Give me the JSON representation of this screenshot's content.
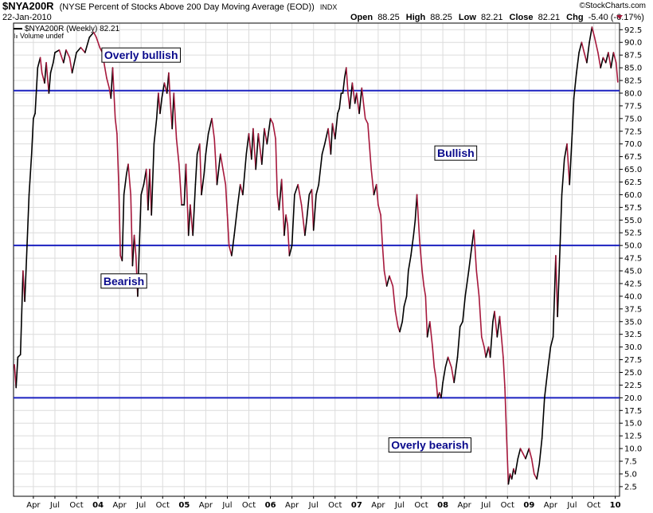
{
  "header": {
    "symbol": "$NYA200R",
    "description": "(NYSE Percent of Stocks Above 200 Day Moving Average (EOD))",
    "exchange": "INDX",
    "date": "22-Jan-2010",
    "open_label": "Open",
    "open": "88.25",
    "high_label": "High",
    "high": "88.25",
    "low_label": "Low",
    "low": "82.21",
    "close_label": "Close",
    "close": "82.21",
    "chg_label": "Chg",
    "chg": "-5.40 (-6.17%)",
    "watermark": "©StockCharts.com"
  },
  "legend": {
    "series": "$NYA200R (Weekly) 82.21",
    "volume": "Volume undef"
  },
  "annotations": [
    {
      "text": "Overly bullish",
      "x": 2004.5,
      "y": 87.5
    },
    {
      "text": "Bullish",
      "x": 2008.15,
      "y": 68.2
    },
    {
      "text": "Bearish",
      "x": 2004.3,
      "y": 43.0
    },
    {
      "text": "Overly bearish",
      "x": 2007.85,
      "y": 10.7
    }
  ],
  "colors": {
    "up": "#000000",
    "down": "#a6183c",
    "hline": "#1c22c0",
    "grid": "#dcdcdc",
    "annotation_text": "#0a0a8c",
    "chg_arrow": "#a6183c"
  },
  "chart_data": {
    "type": "line",
    "title": "$NYA200R (NYSE Percent of Stocks Above 200 Day Moving Average (EOD))",
    "xlim": [
      2003.02,
      2010.05
    ],
    "ylim": [
      0.6,
      93.8
    ],
    "y_ticks": [
      "2.5",
      "5.0",
      "7.5",
      "10.0",
      "12.5",
      "15.0",
      "17.5",
      "20.0",
      "22.5",
      "25.0",
      "27.5",
      "30.0",
      "32.5",
      "35.0",
      "37.5",
      "40.0",
      "42.5",
      "45.0",
      "47.5",
      "50.0",
      "52.5",
      "55.0",
      "57.5",
      "60.0",
      "62.5",
      "65.0",
      "67.5",
      "70.0",
      "72.5",
      "75.0",
      "77.5",
      "80.0",
      "82.5",
      "85.0",
      "87.5",
      "90.0",
      "92.5"
    ],
    "x_ticks": [
      {
        "label": "Apr",
        "x": 2003.25
      },
      {
        "label": "Jul",
        "x": 2003.5
      },
      {
        "label": "Oct",
        "x": 2003.75
      },
      {
        "label": "04",
        "x": 2004.0
      },
      {
        "label": "Apr",
        "x": 2004.25
      },
      {
        "label": "Jul",
        "x": 2004.5
      },
      {
        "label": "Oct",
        "x": 2004.75
      },
      {
        "label": "05",
        "x": 2005.0
      },
      {
        "label": "Apr",
        "x": 2005.25
      },
      {
        "label": "Jul",
        "x": 2005.5
      },
      {
        "label": "Oct",
        "x": 2005.75
      },
      {
        "label": "06",
        "x": 2006.0
      },
      {
        "label": "Apr",
        "x": 2006.25
      },
      {
        "label": "Jul",
        "x": 2006.5
      },
      {
        "label": "Oct",
        "x": 2006.75
      },
      {
        "label": "07",
        "x": 2007.0
      },
      {
        "label": "Apr",
        "x": 2007.25
      },
      {
        "label": "Jul",
        "x": 2007.5
      },
      {
        "label": "Oct",
        "x": 2007.75
      },
      {
        "label": "08",
        "x": 2008.0
      },
      {
        "label": "Apr",
        "x": 2008.25
      },
      {
        "label": "Jul",
        "x": 2008.5
      },
      {
        "label": "Oct",
        "x": 2008.75
      },
      {
        "label": "09",
        "x": 2009.0
      },
      {
        "label": "Apr",
        "x": 2009.25
      },
      {
        "label": "Jul",
        "x": 2009.5
      },
      {
        "label": "Oct",
        "x": 2009.75
      },
      {
        "label": "10",
        "x": 2010.0
      }
    ],
    "hlines": [
      80.5,
      50.0,
      20.0
    ],
    "grid": true,
    "series": [
      {
        "points": [
          [
            2003.03,
            26.5
          ],
          [
            2003.05,
            22
          ],
          [
            2003.07,
            28
          ],
          [
            2003.1,
            28.5
          ],
          [
            2003.13,
            45
          ],
          [
            2003.15,
            39
          ],
          [
            2003.17,
            47
          ],
          [
            2003.2,
            60
          ],
          [
            2003.23,
            68
          ],
          [
            2003.25,
            75
          ],
          [
            2003.27,
            76
          ],
          [
            2003.3,
            85
          ],
          [
            2003.33,
            87
          ],
          [
            2003.35,
            84
          ],
          [
            2003.38,
            82
          ],
          [
            2003.4,
            86
          ],
          [
            2003.43,
            80
          ],
          [
            2003.45,
            84
          ],
          [
            2003.48,
            86
          ],
          [
            2003.5,
            88
          ],
          [
            2003.55,
            88.5
          ],
          [
            2003.6,
            86
          ],
          [
            2003.63,
            88.5
          ],
          [
            2003.67,
            87
          ],
          [
            2003.7,
            84
          ],
          [
            2003.75,
            88
          ],
          [
            2003.8,
            89
          ],
          [
            2003.85,
            88
          ],
          [
            2003.9,
            91
          ],
          [
            2003.95,
            92
          ],
          [
            2003.98,
            91
          ],
          [
            2004.02,
            89
          ],
          [
            2004.05,
            88
          ],
          [
            2004.08,
            85
          ],
          [
            2004.1,
            83
          ],
          [
            2004.13,
            81
          ],
          [
            2004.15,
            79
          ],
          [
            2004.17,
            85
          ],
          [
            2004.2,
            75
          ],
          [
            2004.22,
            72
          ],
          [
            2004.24,
            62
          ],
          [
            2004.26,
            48
          ],
          [
            2004.28,
            47
          ],
          [
            2004.3,
            60
          ],
          [
            2004.33,
            64
          ],
          [
            2004.35,
            66
          ],
          [
            2004.38,
            60
          ],
          [
            2004.4,
            46
          ],
          [
            2004.42,
            52
          ],
          [
            2004.44,
            48
          ],
          [
            2004.46,
            40
          ],
          [
            2004.48,
            50
          ],
          [
            2004.5,
            60
          ],
          [
            2004.53,
            62
          ],
          [
            2004.56,
            65
          ],
          [
            2004.58,
            57
          ],
          [
            2004.6,
            65
          ],
          [
            2004.62,
            56
          ],
          [
            2004.65,
            70
          ],
          [
            2004.68,
            75
          ],
          [
            2004.7,
            80
          ],
          [
            2004.72,
            76
          ],
          [
            2004.74,
            79
          ],
          [
            2004.77,
            82
          ],
          [
            2004.8,
            80
          ],
          [
            2004.82,
            84
          ],
          [
            2004.84,
            78
          ],
          [
            2004.86,
            73
          ],
          [
            2004.88,
            80
          ],
          [
            2004.91,
            71
          ],
          [
            2004.94,
            66
          ],
          [
            2004.97,
            58
          ],
          [
            2005.0,
            58
          ],
          [
            2005.02,
            66
          ],
          [
            2005.05,
            52
          ],
          [
            2005.07,
            58
          ],
          [
            2005.1,
            52
          ],
          [
            2005.13,
            62
          ],
          [
            2005.15,
            68
          ],
          [
            2005.18,
            70
          ],
          [
            2005.2,
            60
          ],
          [
            2005.23,
            64
          ],
          [
            2005.25,
            68
          ],
          [
            2005.28,
            72
          ],
          [
            2005.32,
            75
          ],
          [
            2005.35,
            71
          ],
          [
            2005.38,
            62
          ],
          [
            2005.42,
            68
          ],
          [
            2005.45,
            65
          ],
          [
            2005.48,
            62
          ],
          [
            2005.5,
            56
          ],
          [
            2005.52,
            50
          ],
          [
            2005.55,
            48
          ],
          [
            2005.58,
            52
          ],
          [
            2005.62,
            58
          ],
          [
            2005.65,
            62
          ],
          [
            2005.68,
            60
          ],
          [
            2005.72,
            68
          ],
          [
            2005.75,
            72
          ],
          [
            2005.78,
            67
          ],
          [
            2005.8,
            73
          ],
          [
            2005.83,
            65
          ],
          [
            2005.86,
            72
          ],
          [
            2005.9,
            66
          ],
          [
            2005.93,
            73
          ],
          [
            2005.96,
            70
          ],
          [
            2006.0,
            75
          ],
          [
            2006.03,
            74
          ],
          [
            2006.06,
            71
          ],
          [
            2006.08,
            60
          ],
          [
            2006.1,
            57
          ],
          [
            2006.13,
            63
          ],
          [
            2006.16,
            52
          ],
          [
            2006.18,
            56
          ],
          [
            2006.2,
            54
          ],
          [
            2006.22,
            48
          ],
          [
            2006.25,
            50
          ],
          [
            2006.28,
            60
          ],
          [
            2006.32,
            62
          ],
          [
            2006.36,
            58
          ],
          [
            2006.4,
            52
          ],
          [
            2006.42,
            55
          ],
          [
            2006.45,
            60
          ],
          [
            2006.48,
            61
          ],
          [
            2006.5,
            53
          ],
          [
            2006.53,
            60
          ],
          [
            2006.56,
            62
          ],
          [
            2006.6,
            68
          ],
          [
            2006.63,
            70
          ],
          [
            2006.67,
            73
          ],
          [
            2006.7,
            68
          ],
          [
            2006.72,
            74
          ],
          [
            2006.75,
            71
          ],
          [
            2006.78,
            76
          ],
          [
            2006.8,
            77
          ],
          [
            2006.82,
            80
          ],
          [
            2006.84,
            80
          ],
          [
            2006.86,
            83
          ],
          [
            2006.88,
            85
          ],
          [
            2006.9,
            80
          ],
          [
            2006.92,
            77
          ],
          [
            2006.95,
            82
          ],
          [
            2006.98,
            78
          ],
          [
            2007.0,
            80
          ],
          [
            2007.03,
            76
          ],
          [
            2007.06,
            81
          ],
          [
            2007.1,
            75
          ],
          [
            2007.13,
            74
          ],
          [
            2007.17,
            65
          ],
          [
            2007.2,
            60
          ],
          [
            2007.23,
            62
          ],
          [
            2007.25,
            58
          ],
          [
            2007.28,
            56
          ],
          [
            2007.3,
            50
          ],
          [
            2007.32,
            45
          ],
          [
            2007.35,
            42
          ],
          [
            2007.38,
            44
          ],
          [
            2007.42,
            42
          ],
          [
            2007.45,
            37
          ],
          [
            2007.48,
            34
          ],
          [
            2007.5,
            33
          ],
          [
            2007.53,
            35
          ],
          [
            2007.55,
            38
          ],
          [
            2007.58,
            40
          ],
          [
            2007.6,
            45
          ],
          [
            2007.63,
            48
          ],
          [
            2007.66,
            52
          ],
          [
            2007.68,
            55
          ],
          [
            2007.7,
            60
          ],
          [
            2007.73,
            51
          ],
          [
            2007.76,
            45
          ],
          [
            2007.78,
            42
          ],
          [
            2007.8,
            40
          ],
          [
            2007.82,
            32
          ],
          [
            2007.85,
            35
          ],
          [
            2007.88,
            30
          ],
          [
            2007.9,
            26
          ],
          [
            2007.92,
            24
          ],
          [
            2007.94,
            20
          ],
          [
            2007.96,
            21
          ],
          [
            2007.98,
            20
          ],
          [
            2008.0,
            23
          ],
          [
            2008.03,
            26
          ],
          [
            2008.06,
            28
          ],
          [
            2008.1,
            26
          ],
          [
            2008.13,
            23
          ],
          [
            2008.17,
            28
          ],
          [
            2008.2,
            34
          ],
          [
            2008.23,
            35
          ],
          [
            2008.26,
            40
          ],
          [
            2008.3,
            45
          ],
          [
            2008.33,
            49
          ],
          [
            2008.36,
            53
          ],
          [
            2008.39,
            45
          ],
          [
            2008.42,
            40
          ],
          [
            2008.45,
            32
          ],
          [
            2008.48,
            30
          ],
          [
            2008.5,
            28
          ],
          [
            2008.53,
            30
          ],
          [
            2008.55,
            28
          ],
          [
            2008.58,
            35
          ],
          [
            2008.6,
            37
          ],
          [
            2008.63,
            32
          ],
          [
            2008.66,
            36
          ],
          [
            2008.7,
            28
          ],
          [
            2008.72,
            22
          ],
          [
            2008.74,
            12
          ],
          [
            2008.76,
            3
          ],
          [
            2008.78,
            5
          ],
          [
            2008.8,
            4
          ],
          [
            2008.82,
            6
          ],
          [
            2008.84,
            5
          ],
          [
            2008.87,
            8
          ],
          [
            2008.9,
            10
          ],
          [
            2008.93,
            9
          ],
          [
            2008.96,
            8
          ],
          [
            2009.0,
            10
          ],
          [
            2009.03,
            8
          ],
          [
            2009.06,
            5
          ],
          [
            2009.09,
            4
          ],
          [
            2009.12,
            7
          ],
          [
            2009.15,
            12
          ],
          [
            2009.18,
            20
          ],
          [
            2009.22,
            26
          ],
          [
            2009.25,
            30
          ],
          [
            2009.28,
            32
          ],
          [
            2009.31,
            48
          ],
          [
            2009.33,
            36
          ],
          [
            2009.35,
            45
          ],
          [
            2009.38,
            60
          ],
          [
            2009.41,
            67
          ],
          [
            2009.44,
            70
          ],
          [
            2009.47,
            62
          ],
          [
            2009.5,
            72
          ],
          [
            2009.52,
            79
          ],
          [
            2009.55,
            84
          ],
          [
            2009.58,
            88
          ],
          [
            2009.61,
            90
          ],
          [
            2009.64,
            88
          ],
          [
            2009.67,
            86
          ],
          [
            2009.7,
            90
          ],
          [
            2009.73,
            93
          ],
          [
            2009.76,
            91
          ],
          [
            2009.8,
            88
          ],
          [
            2009.83,
            85
          ],
          [
            2009.86,
            87
          ],
          [
            2009.89,
            86
          ],
          [
            2009.92,
            88
          ],
          [
            2009.95,
            85
          ],
          [
            2009.98,
            88
          ],
          [
            2010.01,
            86
          ],
          [
            2010.03,
            82.21
          ]
        ]
      }
    ]
  }
}
